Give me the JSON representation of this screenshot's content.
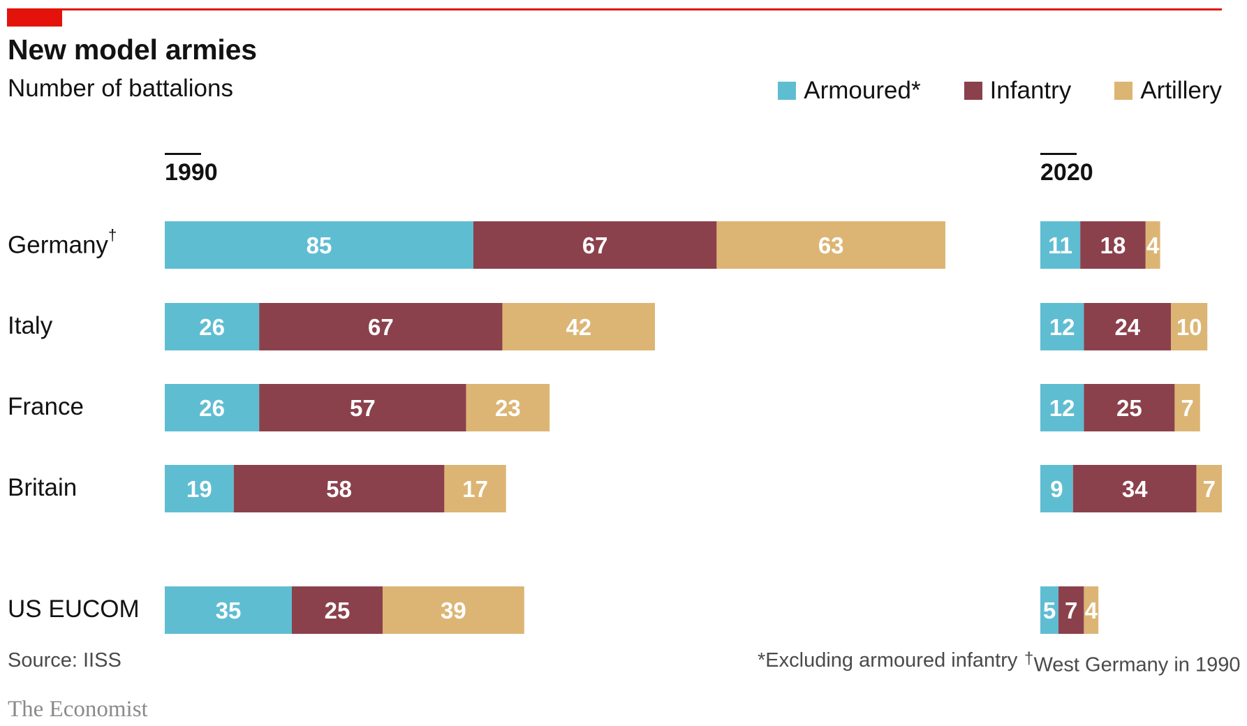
{
  "header": {
    "title": "New model armies",
    "subtitle": "Number of battalions"
  },
  "legend": [
    {
      "label": "Armoured*",
      "color": "#5fbdd2"
    },
    {
      "label": "Infantry",
      "color": "#8b414c"
    },
    {
      "label": "Artillery",
      "color": "#dcb574"
    }
  ],
  "countries": [
    "Germany",
    "Italy",
    "France",
    "Britain",
    "US EUCOM"
  ],
  "germany_mark": "†",
  "chart_data": {
    "type": "bar",
    "orientation": "horizontal",
    "stacked": true,
    "panels": [
      {
        "title": "1990",
        "categories": [
          "Germany",
          "Italy",
          "France",
          "Britain",
          "US EUCOM"
        ],
        "series": [
          {
            "name": "Armoured*",
            "values": [
              85,
              26,
              26,
              19,
              35
            ]
          },
          {
            "name": "Infantry",
            "values": [
              67,
              67,
              57,
              58,
              25
            ]
          },
          {
            "name": "Artillery",
            "values": [
              63,
              42,
              23,
              17,
              39
            ]
          }
        ]
      },
      {
        "title": "2020",
        "categories": [
          "Germany",
          "Italy",
          "France",
          "Britain",
          "US EUCOM"
        ],
        "series": [
          {
            "name": "Armoured*",
            "values": [
              11,
              12,
              12,
              9,
              5
            ]
          },
          {
            "name": "Infantry",
            "values": [
              18,
              24,
              25,
              34,
              7
            ]
          },
          {
            "name": "Artillery",
            "values": [
              4,
              10,
              7,
              7,
              4
            ]
          }
        ]
      }
    ]
  },
  "footer": {
    "source": "Source: IISS",
    "note_armoured": "*Excluding armoured infantry",
    "note_germany_mark": "†",
    "note_germany": "West Germany in 1990",
    "brand": "The Economist"
  }
}
